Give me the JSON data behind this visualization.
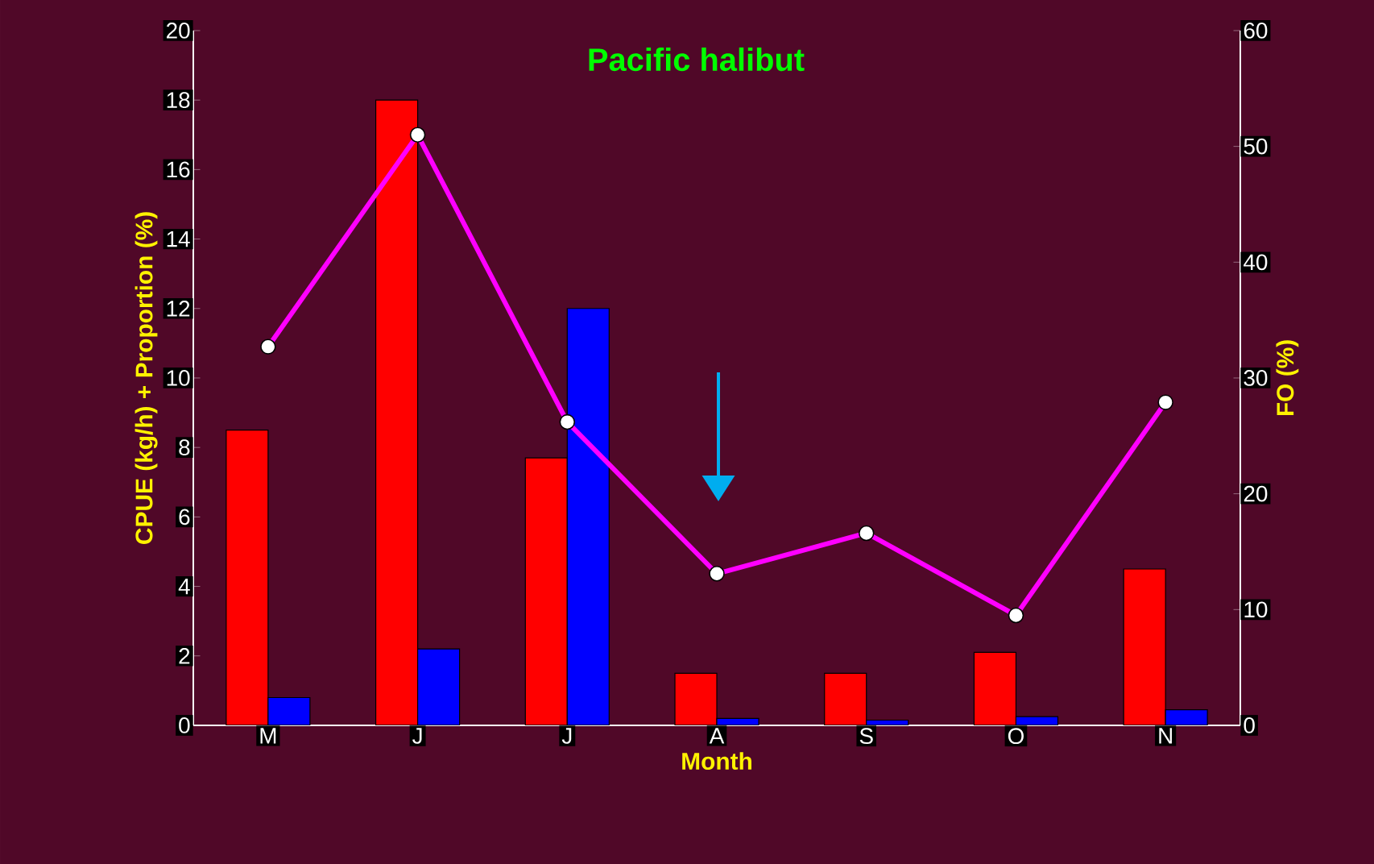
{
  "chart_data": {
    "type": "bar",
    "title": "Pacific halibut",
    "xlabel": "Month",
    "ylabel": "CPUE (kg/h) + Proportion (%)",
    "y2label": "FO (%)",
    "categories": [
      "M",
      "J",
      "J",
      "A",
      "S",
      "O",
      "N"
    ],
    "series": [
      {
        "color": "#ff0000",
        "values": [
          8.5,
          18,
          7.7,
          1.5,
          1.5,
          2.1,
          4.5
        ]
      },
      {
        "color": "#0000ff",
        "values": [
          0.8,
          2.2,
          12,
          0.2,
          0.15,
          0.25,
          0.45
        ]
      },
      {
        "type": "line",
        "axis": "y2",
        "color": "#ff00ff",
        "values": [
          32.7,
          51,
          26.2,
          13.1,
          16.6,
          9.5,
          27.9
        ]
      }
    ],
    "marker": "circle",
    "ylim": [
      0,
      20
    ],
    "yticks": [
      0,
      2,
      4,
      6,
      8,
      10,
      12,
      14,
      16,
      18,
      20
    ],
    "y2lim": [
      0,
      60
    ],
    "y2ticks": [
      0,
      10,
      20,
      30,
      40,
      50,
      60
    ]
  }
}
